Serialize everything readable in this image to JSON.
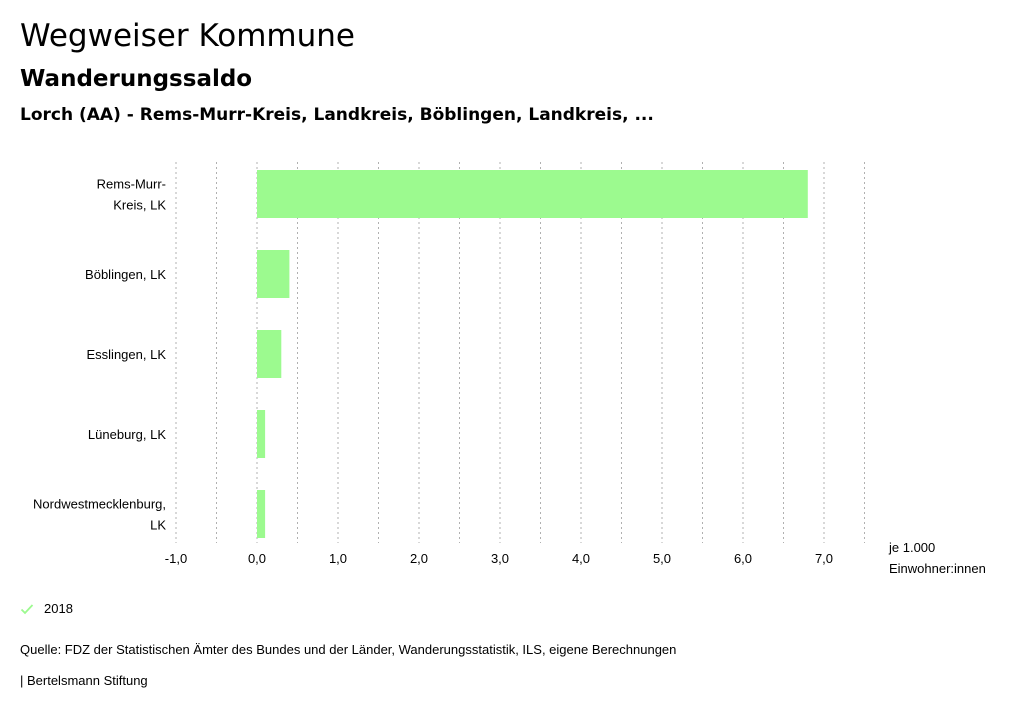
{
  "header": {
    "title": "Wegweiser Kommune",
    "subtitle": "Wanderungssaldo",
    "region": "Lorch (AA) - Rems-Murr-Kreis, Landkreis, Böblingen, Landkreis, ..."
  },
  "chart_data": {
    "type": "bar",
    "orientation": "horizontal",
    "categories": [
      "Rems-Murr-\nKreis, LK",
      "Böblingen, LK",
      "Esslingen, LK",
      "Lüneburg, LK",
      "Nordwestmecklenburg,\nLK"
    ],
    "series": [
      {
        "name": "2018",
        "color": "#9cfa8f",
        "values": [
          6.8,
          0.4,
          0.3,
          0.1,
          0.1
        ]
      }
    ],
    "xlim": [
      -1.0,
      7.5
    ],
    "xticks": [
      -1.0,
      0.0,
      1.0,
      2.0,
      3.0,
      4.0,
      5.0,
      6.0,
      7.0
    ],
    "xtick_labels": [
      "-1,0",
      "0,0",
      "1,0",
      "2,0",
      "3,0",
      "4,0",
      "5,0",
      "6,0",
      "7,0"
    ],
    "grid_step": 0.5,
    "xlabel_lines": [
      "je 1.000",
      "Einwohner:innen"
    ],
    "grid": true,
    "legend_position": "bottom-left"
  },
  "legend": {
    "label": "2018",
    "check_color": "#9cfa8f"
  },
  "footer": {
    "source": "Quelle: FDZ der Statistischen Ämter des Bundes und der Länder, Wanderungsstatistik, ILS, eigene Berechnungen",
    "credit": "| Bertelsmann Stiftung"
  }
}
